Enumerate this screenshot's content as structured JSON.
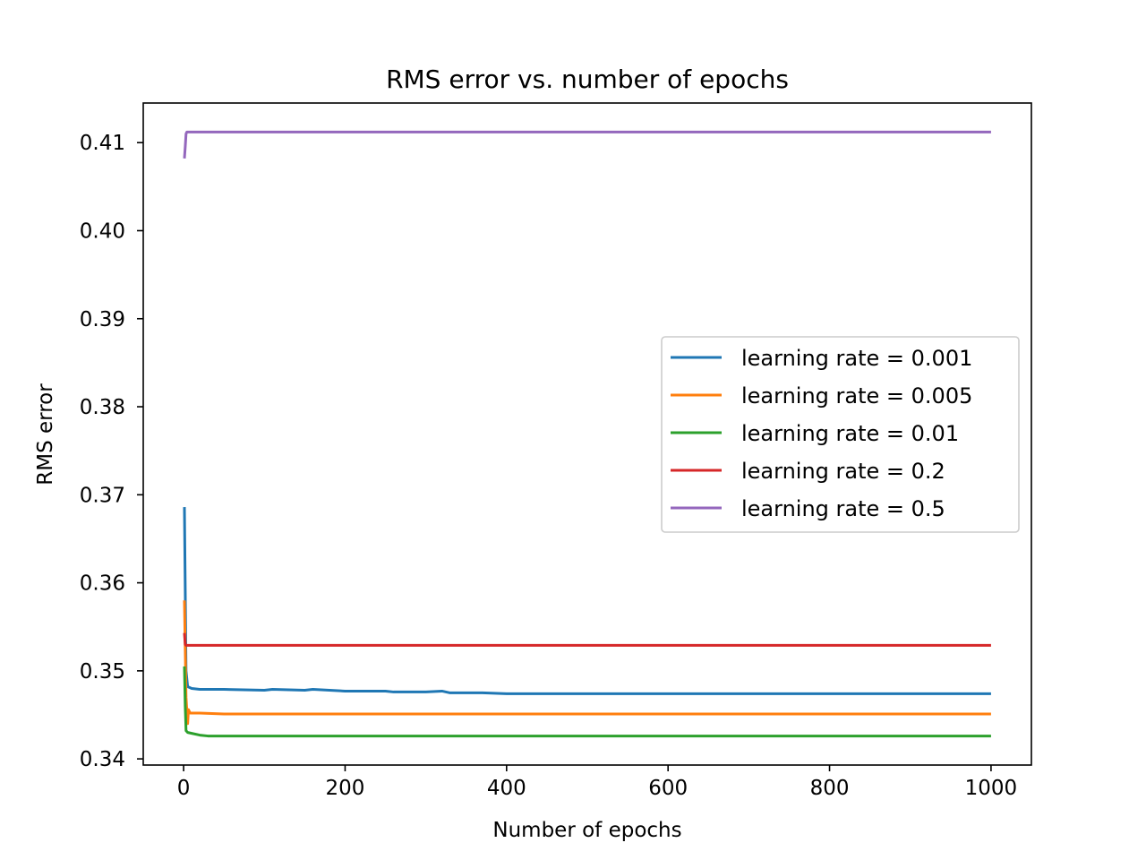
{
  "chart_data": {
    "type": "line",
    "title": "RMS error vs. number of epochs",
    "xlabel": "Number of epochs",
    "ylabel": "RMS error",
    "xlim": [
      -50,
      1050
    ],
    "ylim": [
      0.3393,
      0.4145
    ],
    "xticks": [
      0,
      200,
      400,
      600,
      800,
      1000
    ],
    "yticks": [
      0.34,
      0.35,
      0.36,
      0.37,
      0.38,
      0.39,
      0.4,
      0.41
    ],
    "xtick_labels": [
      "0",
      "200",
      "400",
      "600",
      "800",
      "1000"
    ],
    "ytick_labels": [
      "0.34",
      "0.35",
      "0.36",
      "0.37",
      "0.38",
      "0.39",
      "0.40",
      "0.41"
    ],
    "grid": false,
    "legend_position": "center-right",
    "series": [
      {
        "name": "learning rate = 0.001",
        "color": "#1f77b4",
        "x": [
          1,
          3,
          5,
          10,
          20,
          50,
          100,
          110,
          150,
          160,
          200,
          250,
          260,
          300,
          320,
          330,
          370,
          400,
          500,
          600,
          800,
          1000
        ],
        "y": [
          0.3686,
          0.35,
          0.3482,
          0.348,
          0.3479,
          0.3479,
          0.3478,
          0.3479,
          0.3478,
          0.3479,
          0.3477,
          0.3477,
          0.3476,
          0.3476,
          0.3477,
          0.3475,
          0.3475,
          0.3474,
          0.3474,
          0.3474,
          0.3474,
          0.3474
        ]
      },
      {
        "name": "learning rate = 0.005",
        "color": "#ff7f0e",
        "x": [
          1,
          3,
          5,
          6,
          8,
          10,
          20,
          50,
          100,
          200,
          400,
          600,
          800,
          1000
        ],
        "y": [
          0.358,
          0.347,
          0.344,
          0.3456,
          0.3452,
          0.3452,
          0.3452,
          0.3451,
          0.3451,
          0.3451,
          0.3451,
          0.3451,
          0.3451,
          0.3451
        ],
        "style": "line"
      },
      {
        "name": "learning rate = 0.01",
        "color": "#2ca02c",
        "x": [
          1,
          2,
          3,
          5,
          10,
          20,
          30,
          50,
          100,
          200,
          400,
          600,
          800,
          1000
        ],
        "y": [
          0.3505,
          0.346,
          0.3432,
          0.343,
          0.3429,
          0.3427,
          0.3426,
          0.3426,
          0.3426,
          0.3426,
          0.3426,
          0.3426,
          0.3426,
          0.3426
        ]
      },
      {
        "name": "learning rate = 0.2",
        "color": "#d62728",
        "x": [
          1,
          2,
          3,
          5,
          10,
          100,
          200,
          400,
          600,
          800,
          1000
        ],
        "y": [
          0.3543,
          0.353,
          0.3529,
          0.3529,
          0.3529,
          0.3529,
          0.3529,
          0.3529,
          0.3529,
          0.3529,
          0.3529
        ]
      },
      {
        "name": "learning rate = 0.5",
        "color": "#9467bd",
        "x": [
          1,
          2,
          3,
          4,
          6,
          10,
          100,
          200,
          400,
          600,
          800,
          1000
        ],
        "y": [
          0.4082,
          0.4095,
          0.411,
          0.4112,
          0.4112,
          0.4112,
          0.4112,
          0.4112,
          0.4112,
          0.4112,
          0.4112,
          0.4112
        ]
      }
    ]
  }
}
